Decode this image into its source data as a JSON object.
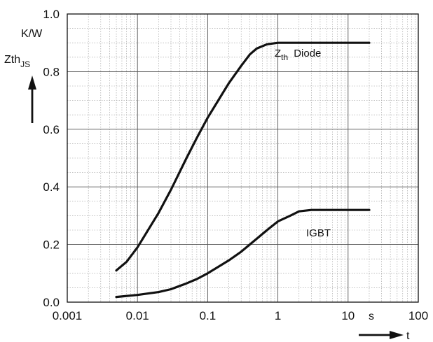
{
  "chart_data": {
    "type": "line",
    "x_scale": "log",
    "xlim": [
      0.001,
      100
    ],
    "ylim": [
      0,
      1.0
    ],
    "grid": true,
    "x_ticks": [
      {
        "value": 0.001,
        "label": "0.001"
      },
      {
        "value": 0.01,
        "label": "0.01"
      },
      {
        "value": 0.1,
        "label": "0.1"
      },
      {
        "value": 1,
        "label": "1"
      },
      {
        "value": 10,
        "label": "10"
      },
      {
        "value": 100,
        "label": "100"
      }
    ],
    "y_ticks": [
      {
        "value": 0.0,
        "label": "0.0"
      },
      {
        "value": 0.2,
        "label": "0.2"
      },
      {
        "value": 0.4,
        "label": "0.4"
      },
      {
        "value": 0.6,
        "label": "0.6"
      },
      {
        "value": 0.8,
        "label": "0.8"
      },
      {
        "value": 1.0,
        "label": "1.0"
      }
    ],
    "xlabel": "t",
    "xunit": "s",
    "ylabel_main": "Zth",
    "ylabel_sub": "JS",
    "yunit": "K/W",
    "series": [
      {
        "name_main": "Z",
        "name_sub": "th",
        "name_rest": "Diode",
        "x": [
          0.005,
          0.007,
          0.01,
          0.015,
          0.02,
          0.03,
          0.05,
          0.07,
          0.1,
          0.15,
          0.2,
          0.3,
          0.4,
          0.5,
          0.7,
          1,
          2,
          3,
          5,
          10,
          20
        ],
        "y": [
          0.11,
          0.14,
          0.19,
          0.26,
          0.31,
          0.39,
          0.5,
          0.57,
          0.64,
          0.71,
          0.76,
          0.82,
          0.86,
          0.88,
          0.895,
          0.9,
          0.9,
          0.9,
          0.9,
          0.9,
          0.9
        ]
      },
      {
        "name": "IGBT",
        "x": [
          0.005,
          0.01,
          0.02,
          0.03,
          0.05,
          0.07,
          0.1,
          0.2,
          0.3,
          0.5,
          0.7,
          1,
          1.5,
          2,
          3,
          5,
          10,
          20
        ],
        "y": [
          0.018,
          0.025,
          0.035,
          0.045,
          0.065,
          0.08,
          0.1,
          0.145,
          0.175,
          0.22,
          0.25,
          0.28,
          0.3,
          0.315,
          0.32,
          0.32,
          0.32,
          0.32
        ]
      }
    ]
  }
}
